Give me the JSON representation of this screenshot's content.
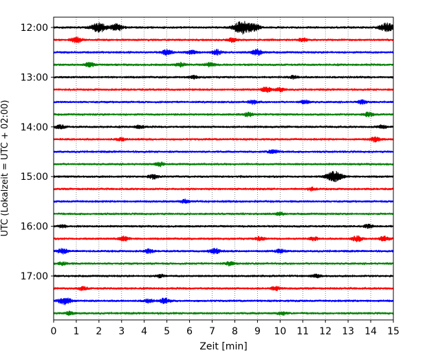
{
  "chart_data": {
    "type": "line",
    "title": "",
    "xlabel": "Zeit  [min]",
    "ylabel": "UTC (Lokalzeit = UTC + 02:00)",
    "xlim": [
      0,
      15
    ],
    "x_ticks": [
      "0",
      "1",
      "2",
      "3",
      "4",
      "5",
      "6",
      "7",
      "8",
      "9",
      "10",
      "11",
      "12",
      "13",
      "14",
      "15"
    ],
    "y_ticks": [
      "12:00",
      "13:00",
      "14:00",
      "15:00",
      "16:00",
      "17:00"
    ],
    "row_interval_minutes": 15,
    "grid": "vertical-dotted",
    "row_colors": [
      "#000000",
      "#ff0000",
      "#0000ff",
      "#008000"
    ],
    "series": [
      {
        "start": "12:00",
        "color": "#000000",
        "bursts": [
          [
            2.0,
            4.0
          ],
          [
            8.35,
            5.5
          ],
          [
            8.9,
            2.2
          ],
          [
            2.8,
            3.0
          ],
          [
            14.6,
            2.5
          ],
          [
            14.85,
            2.0
          ]
        ]
      },
      {
        "start": "12:15",
        "color": "#ff0000",
        "bursts": [
          [
            1.0,
            2.2
          ],
          [
            7.9,
            1.6
          ],
          [
            11.0,
            1.5
          ]
        ]
      },
      {
        "start": "12:30",
        "color": "#0000ff",
        "bursts": [
          [
            5.0,
            2.2
          ],
          [
            7.2,
            2.0
          ],
          [
            9.0,
            2.4
          ],
          [
            6.1,
            1.6
          ]
        ]
      },
      {
        "start": "12:45",
        "color": "#008000",
        "bursts": [
          [
            1.6,
            1.8
          ],
          [
            5.6,
            1.6
          ],
          [
            6.9,
            1.8
          ]
        ]
      },
      {
        "start": "13:00",
        "color": "#000000",
        "bursts": [
          [
            6.2,
            1.4
          ],
          [
            10.6,
            1.3
          ]
        ]
      },
      {
        "start": "13:15",
        "color": "#ff0000",
        "bursts": [
          [
            9.4,
            2.0
          ],
          [
            10.0,
            1.6
          ]
        ]
      },
      {
        "start": "13:30",
        "color": "#0000ff",
        "bursts": [
          [
            8.8,
            1.6
          ],
          [
            11.1,
            1.5
          ],
          [
            13.6,
            1.5
          ]
        ]
      },
      {
        "start": "13:45",
        "color": "#008000",
        "bursts": [
          [
            8.6,
            1.6
          ],
          [
            13.9,
            1.8
          ]
        ]
      },
      {
        "start": "14:00",
        "color": "#000000",
        "bursts": [
          [
            0.3,
            1.6
          ],
          [
            3.8,
            1.4
          ],
          [
            14.5,
            1.5
          ]
        ]
      },
      {
        "start": "14:15",
        "color": "#ff0000",
        "bursts": [
          [
            3.0,
            1.4
          ],
          [
            14.2,
            2.0
          ]
        ]
      },
      {
        "start": "14:30",
        "color": "#0000ff",
        "bursts": [
          [
            9.7,
            1.8
          ]
        ]
      },
      {
        "start": "14:45",
        "color": "#008000",
        "bursts": [
          [
            4.7,
            1.6
          ]
        ]
      },
      {
        "start": "15:00",
        "color": "#000000",
        "bursts": [
          [
            12.4,
            4.5
          ],
          [
            4.4,
            1.8
          ]
        ]
      },
      {
        "start": "15:15",
        "color": "#ff0000",
        "bursts": [
          [
            11.4,
            1.3
          ]
        ]
      },
      {
        "start": "15:30",
        "color": "#0000ff",
        "bursts": [
          [
            5.8,
            1.5
          ]
        ]
      },
      {
        "start": "15:45",
        "color": "#008000",
        "bursts": [
          [
            10.0,
            1.2
          ]
        ]
      },
      {
        "start": "16:00",
        "color": "#000000",
        "bursts": [
          [
            13.9,
            1.5
          ],
          [
            0.4,
            1.2
          ]
        ]
      },
      {
        "start": "16:15",
        "color": "#ff0000",
        "bursts": [
          [
            3.1,
            2.0
          ],
          [
            9.1,
            1.6
          ],
          [
            11.5,
            1.4
          ],
          [
            13.4,
            2.2
          ],
          [
            14.6,
            1.8
          ]
        ]
      },
      {
        "start": "16:30",
        "color": "#0000ff",
        "bursts": [
          [
            0.4,
            2.2
          ],
          [
            4.2,
            1.6
          ],
          [
            7.1,
            2.2
          ],
          [
            10.0,
            1.6
          ]
        ]
      },
      {
        "start": "16:45",
        "color": "#008000",
        "bursts": [
          [
            0.4,
            1.4
          ],
          [
            7.8,
            1.5
          ]
        ]
      },
      {
        "start": "17:00",
        "color": "#000000",
        "bursts": [
          [
            4.7,
            1.3
          ],
          [
            11.6,
            1.3
          ]
        ]
      },
      {
        "start": "17:15",
        "color": "#ff0000",
        "bursts": [
          [
            1.3,
            1.4
          ],
          [
            9.8,
            1.6
          ]
        ]
      },
      {
        "start": "17:30",
        "color": "#0000ff",
        "bursts": [
          [
            0.5,
            3.0
          ],
          [
            4.2,
            1.6
          ],
          [
            4.9,
            2.0
          ]
        ]
      },
      {
        "start": "17:45",
        "color": "#008000",
        "bursts": [
          [
            0.7,
            1.3
          ],
          [
            10.1,
            1.4
          ]
        ]
      }
    ]
  }
}
